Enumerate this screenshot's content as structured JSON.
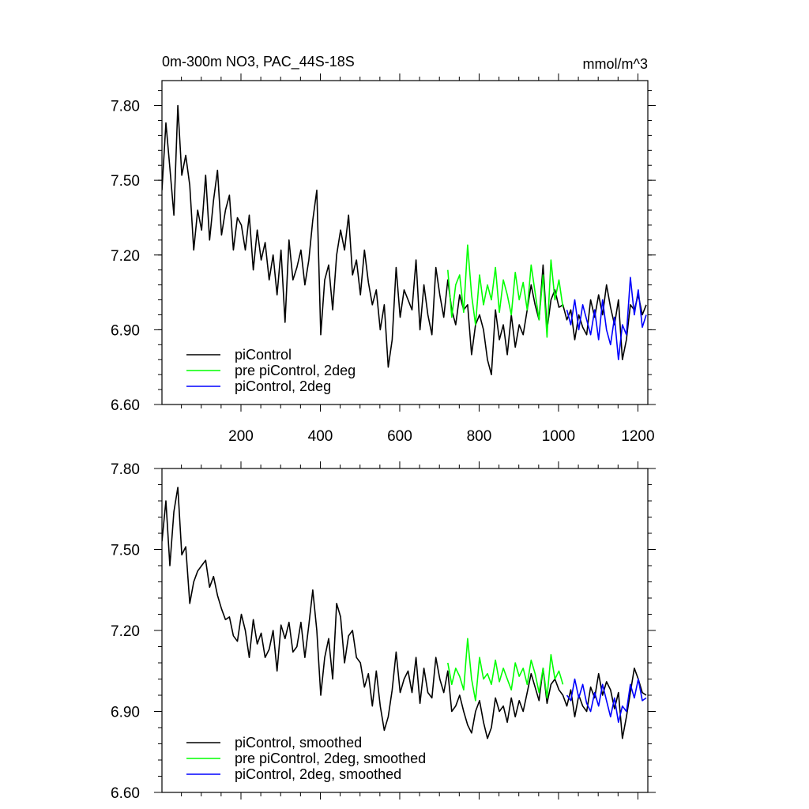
{
  "header": {
    "title": "0m-300m NO3, PAC_44S-18S",
    "units": "mmol/m^3"
  },
  "colors": {
    "piControl": "#000000",
    "pre_piControl_2deg": "#00ff00",
    "piControl_2deg": "#0000ff",
    "axis": "#000000",
    "background": "#ffffff"
  },
  "chart_data": [
    {
      "type": "line",
      "title": "",
      "xlabel": "",
      "ylabel": "",
      "xlim": [
        1,
        1225
      ],
      "ylim": [
        6.6,
        7.9
      ],
      "grid": false,
      "legend_position": "bottom-left",
      "x_ticks": [
        200,
        400,
        600,
        800,
        1000,
        1200
      ],
      "x_tick_labels": [
        "200",
        "400",
        "600",
        "800",
        "1000",
        "1200"
      ],
      "y_ticks": [
        6.6,
        6.9,
        7.2,
        7.5,
        7.8
      ],
      "y_tick_labels": [
        "6.60",
        "6.90",
        "7.20",
        "7.50",
        "7.80"
      ],
      "series": [
        {
          "name": "piControl",
          "color": "#000000",
          "x": [
            1,
            11,
            21,
            31,
            41,
            51,
            61,
            71,
            81,
            91,
            101,
            111,
            121,
            131,
            141,
            151,
            161,
            171,
            181,
            191,
            201,
            211,
            221,
            231,
            241,
            251,
            261,
            271,
            281,
            291,
            301,
            311,
            321,
            331,
            341,
            351,
            361,
            371,
            381,
            391,
            401,
            411,
            421,
            431,
            441,
            451,
            461,
            471,
            481,
            491,
            501,
            511,
            521,
            531,
            541,
            551,
            561,
            571,
            581,
            591,
            601,
            611,
            621,
            631,
            641,
            651,
            661,
            671,
            681,
            691,
            701,
            711,
            721,
            731,
            741,
            751,
            761,
            771,
            781,
            791,
            801,
            811,
            821,
            831,
            841,
            851,
            861,
            871,
            881,
            891,
            901,
            911,
            921,
            931,
            941,
            951,
            961,
            971,
            981,
            991,
            1001,
            1011,
            1021,
            1031,
            1041,
            1051,
            1061,
            1071,
            1081,
            1091,
            1101,
            1111,
            1121,
            1131,
            1141,
            1151,
            1161,
            1171,
            1181,
            1191,
            1201,
            1211,
            1221
          ],
          "y": [
            7.46,
            7.73,
            7.55,
            7.36,
            7.8,
            7.52,
            7.6,
            7.48,
            7.22,
            7.38,
            7.3,
            7.52,
            7.26,
            7.42,
            7.54,
            7.28,
            7.38,
            7.44,
            7.22,
            7.35,
            7.32,
            7.22,
            7.36,
            7.14,
            7.3,
            7.18,
            7.25,
            7.1,
            7.2,
            7.04,
            7.22,
            6.93,
            7.26,
            7.1,
            7.15,
            7.22,
            7.08,
            7.18,
            7.34,
            7.46,
            6.88,
            7.1,
            7.16,
            6.98,
            7.2,
            7.3,
            7.22,
            7.36,
            7.12,
            7.18,
            7.04,
            7.22,
            7.09,
            7.0,
            7.06,
            6.9,
            7.0,
            6.75,
            6.86,
            7.15,
            6.95,
            7.06,
            7.02,
            6.98,
            7.18,
            6.9,
            7.08,
            6.96,
            6.88,
            7.15,
            7.04,
            6.95,
            7.1,
            6.98,
            6.92,
            7.04,
            6.98,
            7.0,
            6.8,
            6.92,
            6.96,
            6.9,
            6.78,
            6.72,
            6.98,
            6.86,
            6.92,
            6.8,
            6.96,
            6.83,
            6.92,
            6.88,
            6.98,
            7.08,
            7.0,
            6.94,
            7.16,
            6.9,
            7.02,
            7.06,
            6.99,
            7.0,
            6.94,
            6.98,
            6.86,
            6.96,
            6.91,
            6.88,
            7.02,
            6.95,
            7.04,
            6.96,
            7.08,
            6.99,
            6.92,
            7.02,
            6.78,
            6.86,
            7.0,
            6.98,
            7.04,
            6.96,
            7.0
          ]
        },
        {
          "name": "pre piControl, 2deg",
          "color": "#00ff00",
          "x": [
            721,
            731,
            741,
            751,
            761,
            771,
            781,
            791,
            801,
            811,
            821,
            831,
            841,
            851,
            861,
            871,
            881,
            891,
            901,
            911,
            921,
            931,
            941,
            951,
            961,
            971,
            981,
            991,
            1001,
            1011
          ],
          "y": [
            7.14,
            6.95,
            7.08,
            7.12,
            6.97,
            7.24,
            7.04,
            6.92,
            7.12,
            7.0,
            7.08,
            7.02,
            7.15,
            6.97,
            7.1,
            7.04,
            6.96,
            7.13,
            7.02,
            7.09,
            6.98,
            7.16,
            7.05,
            6.94,
            7.12,
            6.87,
            7.18,
            7.02,
            7.1,
            6.99
          ]
        },
        {
          "name": "piControl, 2deg",
          "color": "#0000ff",
          "x": [
            1021,
            1031,
            1041,
            1051,
            1061,
            1071,
            1081,
            1091,
            1101,
            1111,
            1121,
            1131,
            1141,
            1151,
            1161,
            1171,
            1181,
            1191,
            1201,
            1211,
            1221
          ],
          "y": [
            6.98,
            6.92,
            7.02,
            6.9,
            7.0,
            6.94,
            6.88,
            6.98,
            6.86,
            7.02,
            6.9,
            6.84,
            6.95,
            6.78,
            6.92,
            6.88,
            7.11,
            6.96,
            7.06,
            6.91,
            6.96
          ]
        }
      ]
    },
    {
      "type": "line",
      "title": "",
      "xlabel": "",
      "ylabel": "",
      "xlim": [
        1,
        1225
      ],
      "ylim": [
        6.6,
        7.8
      ],
      "grid": false,
      "legend_position": "bottom-left",
      "x_ticks": [
        200,
        400,
        600,
        800,
        1000,
        1200
      ],
      "x_tick_labels": [],
      "y_ticks": [
        6.6,
        6.9,
        7.2,
        7.5,
        7.8
      ],
      "y_tick_labels": [
        "6.60",
        "6.90",
        "7.20",
        "7.50",
        "7.80"
      ],
      "series": [
        {
          "name": "piControl, smoothed",
          "color": "#000000",
          "x": [
            1,
            11,
            21,
            31,
            41,
            51,
            61,
            71,
            81,
            91,
            101,
            111,
            121,
            131,
            141,
            151,
            161,
            171,
            181,
            191,
            201,
            211,
            221,
            231,
            241,
            251,
            261,
            271,
            281,
            291,
            301,
            311,
            321,
            331,
            341,
            351,
            361,
            371,
            381,
            391,
            401,
            411,
            421,
            431,
            441,
            451,
            461,
            471,
            481,
            491,
            501,
            511,
            521,
            531,
            541,
            551,
            561,
            571,
            581,
            591,
            601,
            611,
            621,
            631,
            641,
            651,
            661,
            671,
            681,
            691,
            701,
            711,
            721,
            731,
            741,
            751,
            761,
            771,
            781,
            791,
            801,
            811,
            821,
            831,
            841,
            851,
            861,
            871,
            881,
            891,
            901,
            911,
            921,
            931,
            941,
            951,
            961,
            971,
            981,
            991,
            1001,
            1011,
            1021,
            1031,
            1041,
            1051,
            1061,
            1071,
            1081,
            1091,
            1101,
            1111,
            1121,
            1131,
            1141,
            1151,
            1161,
            1171,
            1181,
            1191,
            1201,
            1211,
            1221
          ],
          "y": [
            7.53,
            7.68,
            7.44,
            7.64,
            7.73,
            7.48,
            7.51,
            7.3,
            7.38,
            7.42,
            7.44,
            7.46,
            7.36,
            7.4,
            7.33,
            7.28,
            7.24,
            7.25,
            7.18,
            7.16,
            7.26,
            7.2,
            7.1,
            7.24,
            7.15,
            7.19,
            7.1,
            7.13,
            7.2,
            7.05,
            7.22,
            7.17,
            7.23,
            7.12,
            7.14,
            7.23,
            7.1,
            7.22,
            7.35,
            7.2,
            6.96,
            7.1,
            7.17,
            7.02,
            7.3,
            7.25,
            7.08,
            7.18,
            7.2,
            7.1,
            7.08,
            6.99,
            7.04,
            6.92,
            7.05,
            6.92,
            6.83,
            6.88,
            6.98,
            7.12,
            6.97,
            7.02,
            7.05,
            6.97,
            7.1,
            6.93,
            7.06,
            6.97,
            6.95,
            7.1,
            7.02,
            6.97,
            7.05,
            6.9,
            6.92,
            6.96,
            6.9,
            6.85,
            6.82,
            6.9,
            6.94,
            6.86,
            6.8,
            6.84,
            6.95,
            6.9,
            6.92,
            6.86,
            6.95,
            6.88,
            6.94,
            6.9,
            6.97,
            7.04,
            6.99,
            6.94,
            7.06,
            6.93,
            7.0,
            7.02,
            6.98,
            6.96,
            6.92,
            6.98,
            6.88,
            6.96,
            6.92,
            6.9,
            6.99,
            6.95,
            7.04,
            6.96,
            7.01,
            6.98,
            6.91,
            6.97,
            6.8,
            6.88,
            6.97,
            7.06,
            7.02,
            6.97,
            6.96
          ]
        },
        {
          "name": "pre piControl, 2deg, smoothed",
          "color": "#00ff00",
          "x": [
            721,
            731,
            741,
            751,
            761,
            771,
            781,
            791,
            801,
            811,
            821,
            831,
            841,
            851,
            861,
            871,
            881,
            891,
            901,
            911,
            921,
            931,
            941,
            951,
            961,
            971,
            981,
            991,
            1001,
            1011
          ],
          "y": [
            7.08,
            7.0,
            7.06,
            7.03,
            6.98,
            7.17,
            7.02,
            6.94,
            7.1,
            7.02,
            7.04,
            7.0,
            7.09,
            7.01,
            7.06,
            7.02,
            6.98,
            7.08,
            7.03,
            7.06,
            7.0,
            7.09,
            7.04,
            6.97,
            7.06,
            6.95,
            7.11,
            7.02,
            7.05,
            7.0
          ]
        },
        {
          "name": "piControl, 2deg, smoothed",
          "color": "#0000ff",
          "x": [
            1021,
            1031,
            1041,
            1051,
            1061,
            1071,
            1081,
            1091,
            1101,
            1111,
            1121,
            1131,
            1141,
            1151,
            1161,
            1171,
            1181,
            1191,
            1201,
            1211,
            1221
          ],
          "y": [
            6.96,
            6.94,
            7.02,
            6.95,
            7.0,
            6.93,
            6.9,
            6.97,
            6.92,
            7.0,
            6.94,
            6.88,
            6.95,
            6.86,
            6.92,
            6.9,
            7.0,
            6.95,
            7.02,
            6.94,
            6.95
          ]
        }
      ]
    }
  ]
}
